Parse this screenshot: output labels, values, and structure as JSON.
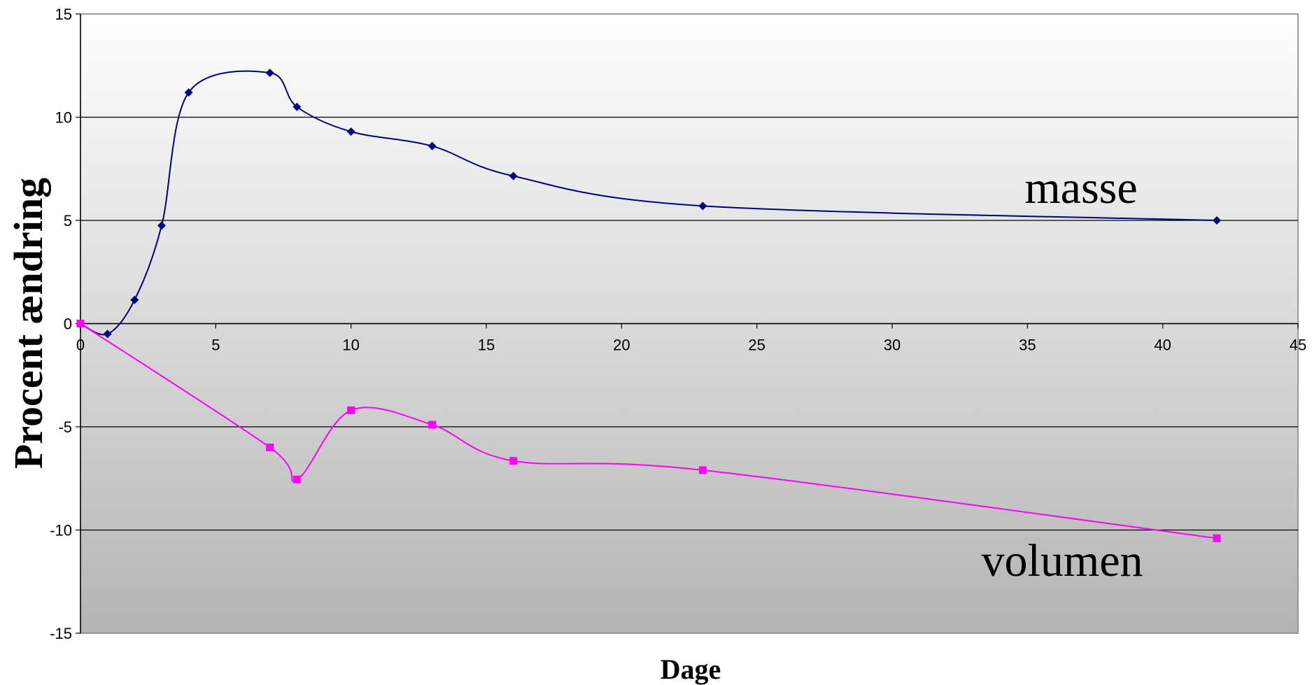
{
  "chart_data": {
    "type": "line",
    "xlabel": "Dage",
    "ylabel": "Procent ændring",
    "xlim": [
      0,
      45
    ],
    "ylim": [
      -15,
      15
    ],
    "x_ticks": [
      "0",
      "5",
      "10",
      "15",
      "20",
      "25",
      "30",
      "35",
      "40",
      "45"
    ],
    "y_ticks": [
      "15",
      "10",
      "5",
      "0",
      "-5",
      "-10",
      "-15"
    ],
    "grid": "horizontal",
    "background": "vertical gradient white to gray",
    "smoothed": true,
    "series": [
      {
        "name": "masse",
        "color": "#000080",
        "marker": "diamond",
        "points": [
          {
            "x": 0,
            "y": 0
          },
          {
            "x": 1,
            "y": -0.5
          },
          {
            "x": 2,
            "y": 1.15
          },
          {
            "x": 3,
            "y": 4.75
          },
          {
            "x": 4,
            "y": 11.2
          },
          {
            "x": 7,
            "y": 12.15
          },
          {
            "x": 8,
            "y": 10.5
          },
          {
            "x": 10,
            "y": 9.3
          },
          {
            "x": 13,
            "y": 8.6
          },
          {
            "x": 16,
            "y": 7.15
          },
          {
            "x": 23,
            "y": 5.7
          },
          {
            "x": 42,
            "y": 5.0
          }
        ]
      },
      {
        "name": "volumen",
        "color": "#ff00ff",
        "marker": "square",
        "points": [
          {
            "x": 0,
            "y": 0
          },
          {
            "x": 7,
            "y": -6.0
          },
          {
            "x": 8,
            "y": -7.55
          },
          {
            "x": 10,
            "y": -4.2
          },
          {
            "x": 13,
            "y": -4.9
          },
          {
            "x": 16,
            "y": -6.65
          },
          {
            "x": 23,
            "y": -7.1
          },
          {
            "x": 42,
            "y": -10.4
          }
        ]
      }
    ]
  }
}
